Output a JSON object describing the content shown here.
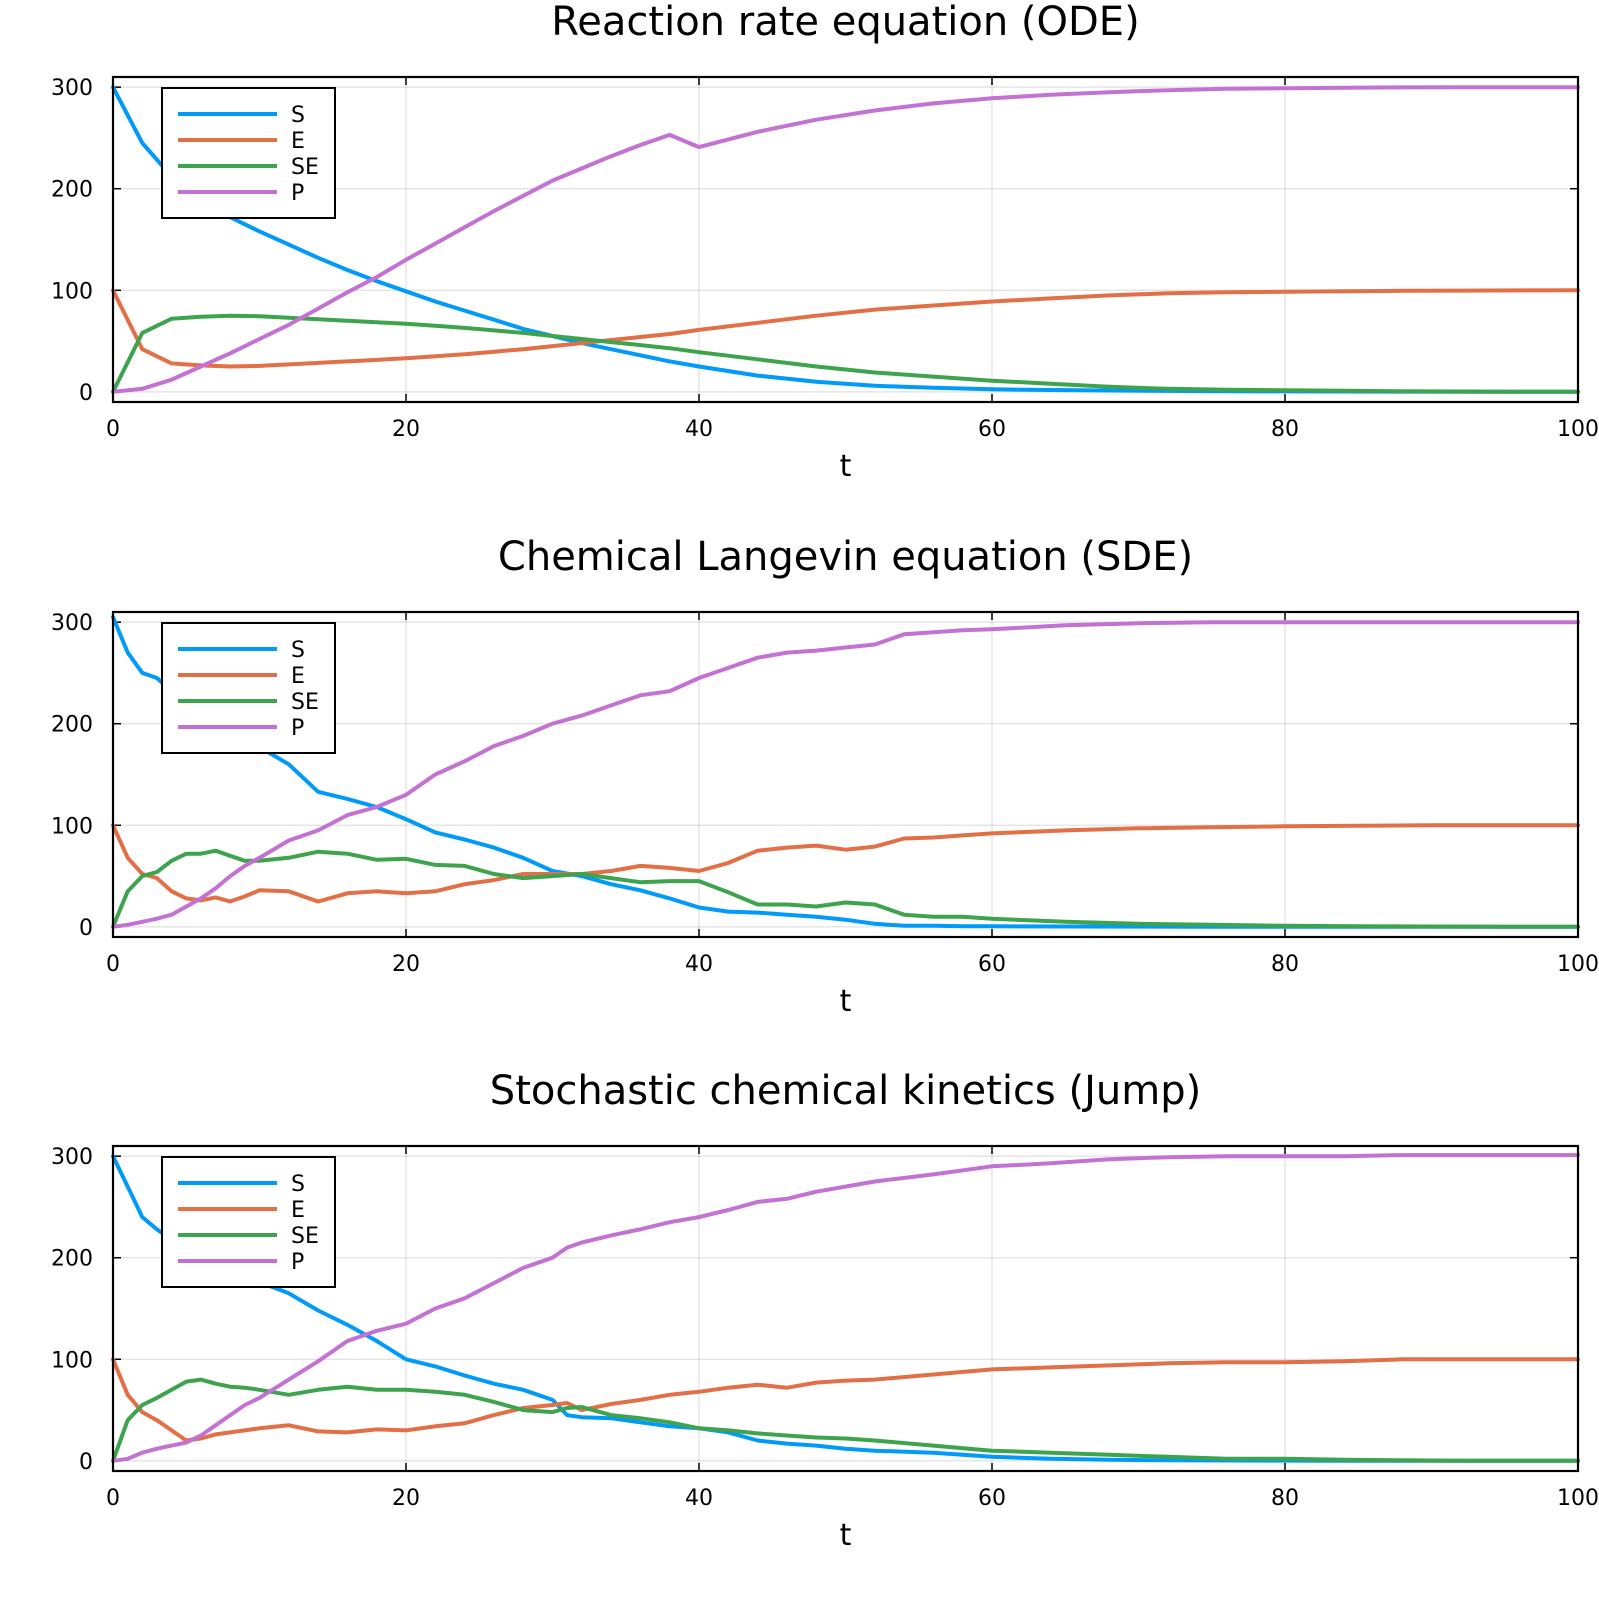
{
  "colors": {
    "S": "#009af9",
    "E": "#e26f46",
    "SE": "#3da44d",
    "P": "#c371d2"
  },
  "chart_data": [
    {
      "type": "line",
      "title": "Reaction rate equation (ODE)",
      "xlabel": "t",
      "ylabel": "",
      "xlim": [
        0,
        100
      ],
      "ylim": [
        -10,
        310
      ],
      "xticks": [
        "0",
        "20",
        "40",
        "60",
        "80",
        "100"
      ],
      "yticks": [
        "0",
        "100",
        "200",
        "300"
      ],
      "grid": true,
      "legend_position": "top-left",
      "x": [
        0,
        2,
        4,
        6,
        8,
        10,
        12,
        14,
        16,
        18,
        20,
        22,
        24,
        26,
        28,
        30,
        32,
        34,
        36,
        38,
        40,
        44,
        48,
        52,
        56,
        60,
        64,
        68,
        72,
        76,
        80,
        84,
        88,
        92,
        96,
        100
      ],
      "series": [
        {
          "name": "S",
          "values": [
            300,
            245,
            212,
            190,
            172,
            158,
            145,
            132,
            120,
            109,
            99,
            89,
            80,
            71,
            62,
            55,
            48,
            42,
            36,
            30,
            25,
            16,
            10,
            6,
            4,
            2.5,
            1.8,
            1.3,
            0.9,
            0.6,
            0.4,
            0.3,
            0.2,
            0.1,
            0.05,
            0
          ]
        },
        {
          "name": "E",
          "values": [
            100,
            42,
            28,
            26,
            25,
            25.5,
            27,
            28.5,
            30,
            31.5,
            33,
            35,
            37,
            39.5,
            42,
            45,
            48,
            51,
            54,
            57,
            61,
            68,
            75,
            81,
            85,
            89,
            92,
            95,
            97,
            98,
            98.5,
            99,
            99.5,
            99.7,
            99.9,
            100
          ]
        },
        {
          "name": "SE",
          "values": [
            0,
            58,
            72,
            74,
            75,
            74.5,
            73,
            71.5,
            70,
            68.5,
            67,
            65,
            63,
            60.5,
            58,
            55,
            52,
            49,
            46,
            43,
            39,
            32,
            25,
            19,
            15,
            11,
            8,
            5,
            3,
            2,
            1.5,
            1,
            0.5,
            0.3,
            0.1,
            0
          ]
        },
        {
          "name": "P",
          "values": [
            0,
            3,
            12,
            25,
            38,
            52,
            66,
            82,
            98,
            113,
            130,
            146,
            162,
            178,
            193,
            208,
            220,
            232,
            243,
            253,
            241,
            256,
            268,
            277,
            284,
            289,
            292.5,
            295,
            297,
            298.5,
            299,
            299.5,
            299.8,
            300,
            300,
            300
          ]
        }
      ]
    },
    {
      "type": "line",
      "title": "Chemical Langevin equation (SDE)",
      "xlabel": "t",
      "ylabel": "",
      "xlim": [
        0,
        100
      ],
      "ylim": [
        -10,
        310
      ],
      "xticks": [
        "0",
        "20",
        "40",
        "60",
        "80",
        "100"
      ],
      "yticks": [
        "0",
        "100",
        "200",
        "300"
      ],
      "grid": true,
      "legend_position": "top-left",
      "x": [
        0,
        1,
        2,
        3,
        4,
        5,
        6,
        7,
        8,
        9,
        10,
        12,
        14,
        16,
        18,
        20,
        22,
        24,
        26,
        28,
        30,
        32,
        34,
        36,
        38,
        40,
        42,
        44,
        46,
        48,
        50,
        52,
        54,
        56,
        58,
        60,
        65,
        70,
        75,
        80,
        85,
        90,
        95,
        100
      ],
      "series": [
        {
          "name": "S",
          "values": [
            305,
            270,
            250,
            245,
            232,
            218,
            205,
            198,
            190,
            183,
            177,
            160,
            133,
            126,
            118,
            106,
            93,
            86,
            78,
            68,
            55,
            50,
            42,
            36,
            28,
            19,
            15,
            14,
            12,
            10,
            7,
            3,
            1,
            1,
            0.5,
            0.5,
            0.3,
            0.2,
            0.1,
            0,
            0,
            0,
            0,
            0
          ]
        },
        {
          "name": "E",
          "values": [
            100,
            68,
            52,
            48,
            35,
            28,
            26,
            29,
            25,
            30,
            36,
            35,
            25,
            33,
            35,
            33,
            35,
            42,
            46,
            52,
            52,
            52,
            55,
            60,
            58,
            55,
            63,
            75,
            78,
            80,
            76,
            79,
            87,
            88,
            90,
            92,
            95,
            97,
            98,
            99,
            99.5,
            100,
            100,
            100
          ]
        },
        {
          "name": "SE",
          "values": [
            0,
            35,
            50,
            54,
            65,
            72,
            72,
            75,
            70,
            65,
            65,
            68,
            74,
            72,
            66,
            67,
            61,
            60,
            52,
            48,
            50,
            52,
            48,
            44,
            45,
            45,
            34,
            22,
            22,
            20,
            24,
            22,
            12,
            10,
            10,
            8,
            5,
            3,
            2,
            1,
            0.5,
            0.3,
            0.1,
            0
          ]
        },
        {
          "name": "P",
          "values": [
            0,
            2,
            5,
            8,
            12,
            20,
            28,
            38,
            50,
            60,
            68,
            85,
            95,
            110,
            118,
            130,
            150,
            163,
            178,
            188,
            200,
            208,
            218,
            228,
            232,
            245,
            255,
            265,
            270,
            272,
            275,
            278,
            288,
            290,
            292,
            293,
            297,
            299,
            300,
            300,
            300,
            300,
            300,
            300
          ]
        }
      ]
    },
    {
      "type": "line",
      "title": "Stochastic chemical kinetics (Jump)",
      "xlabel": "t",
      "ylabel": "",
      "xlim": [
        0,
        100
      ],
      "ylim": [
        -10,
        310
      ],
      "xticks": [
        "0",
        "20",
        "40",
        "60",
        "80",
        "100"
      ],
      "yticks": [
        "0",
        "100",
        "200",
        "300"
      ],
      "grid": true,
      "legend_position": "top-left",
      "x": [
        0,
        1,
        2,
        3,
        4,
        5,
        6,
        7,
        8,
        9,
        10,
        12,
        14,
        16,
        18,
        20,
        22,
        24,
        26,
        28,
        30,
        31,
        32,
        34,
        36,
        38,
        40,
        42,
        44,
        46,
        48,
        50,
        52,
        56,
        60,
        64,
        68,
        72,
        76,
        80,
        84,
        88,
        92,
        96,
        100
      ],
      "series": [
        {
          "name": "S",
          "values": [
            300,
            270,
            240,
            228,
            218,
            210,
            203,
            196,
            190,
            183,
            176,
            165,
            148,
            134,
            118,
            100,
            93,
            84,
            76,
            70,
            60,
            45,
            43,
            42,
            38,
            34,
            32,
            28,
            20,
            17,
            15,
            12,
            10,
            8,
            4,
            2,
            1,
            0.5,
            0.3,
            0.2,
            0.1,
            0,
            0,
            0,
            0
          ]
        },
        {
          "name": "E",
          "values": [
            100,
            65,
            48,
            40,
            30,
            20,
            22,
            26,
            28,
            30,
            32,
            35,
            29,
            28,
            31,
            30,
            34,
            37,
            45,
            52,
            55,
            57,
            50,
            56,
            60,
            65,
            68,
            72,
            75,
            72,
            77,
            79,
            80,
            85,
            90,
            92,
            94,
            96,
            97,
            97,
            98,
            100,
            100,
            100,
            100
          ]
        },
        {
          "name": "SE",
          "values": [
            0,
            40,
            55,
            62,
            70,
            78,
            80,
            76,
            73,
            72,
            70,
            65,
            70,
            73,
            70,
            70,
            68,
            65,
            58,
            50,
            48,
            52,
            53,
            45,
            42,
            38,
            32,
            30,
            27,
            25,
            23,
            22,
            20,
            15,
            10,
            8,
            6,
            4,
            2,
            2,
            1,
            0.5,
            0,
            0,
            0
          ]
        },
        {
          "name": "P",
          "values": [
            0,
            2,
            8,
            12,
            15,
            18,
            25,
            35,
            45,
            55,
            62,
            80,
            98,
            118,
            128,
            135,
            150,
            160,
            175,
            190,
            200,
            210,
            215,
            222,
            228,
            235,
            240,
            247,
            255,
            258,
            265,
            270,
            275,
            282,
            290,
            293,
            297,
            299,
            300,
            300,
            300,
            301,
            301,
            301,
            301
          ]
        }
      ]
    }
  ]
}
